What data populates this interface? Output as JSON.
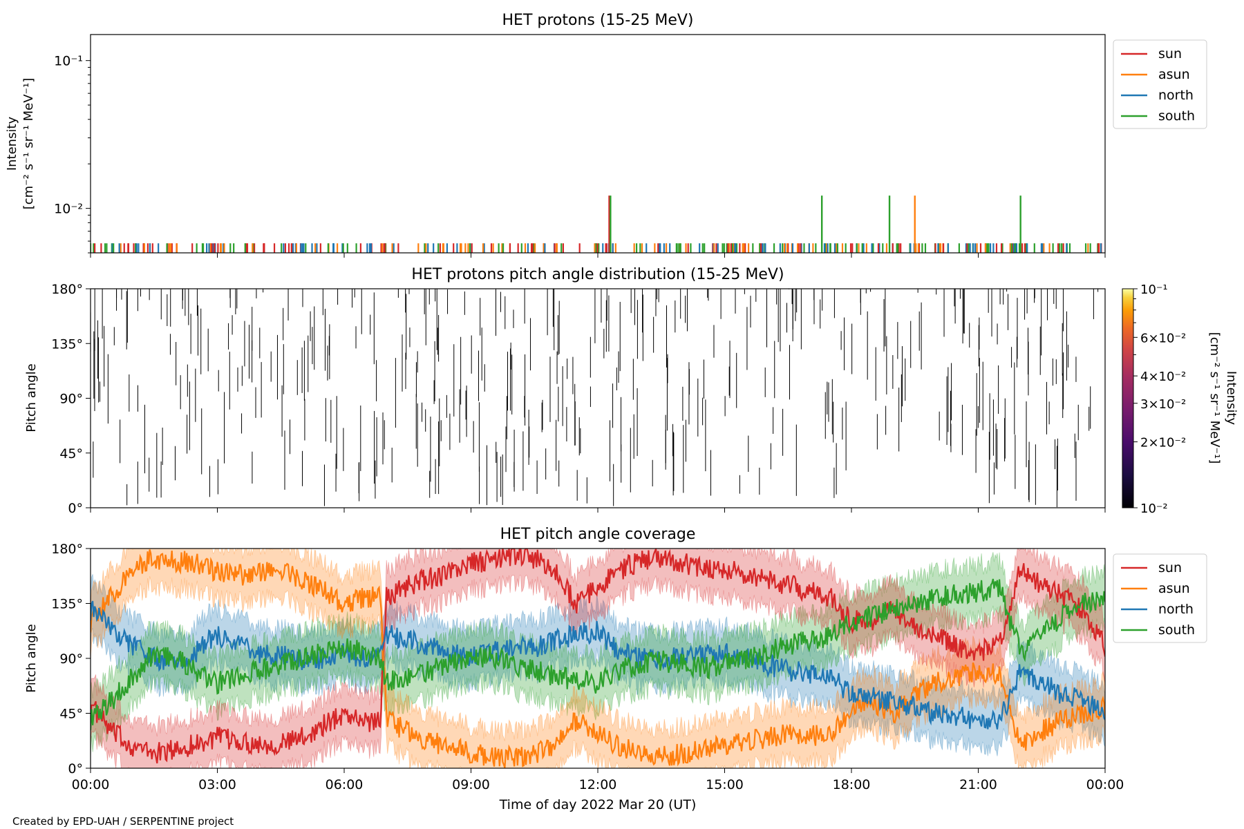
{
  "credit": "Created by EPD-UAH / SERPENTINE project",
  "colors": {
    "sun": "#d62728",
    "asun": "#ff7f0e",
    "north": "#1f77b4",
    "south": "#2ca02c"
  },
  "chart_data": [
    {
      "type": "line",
      "title": "HET protons (15-25 MeV)",
      "ylabel_line1": "Intensity",
      "ylabel_line2": "[cm⁻² s⁻¹ sr⁻¹ MeV⁻¹]",
      "yscale": "log",
      "ylim": [
        0.005,
        0.15
      ],
      "ytick_labels": [
        {
          "value": 0.1,
          "label": "10⁻¹"
        },
        {
          "value": 0.01,
          "label": "10⁻²"
        }
      ],
      "x_unit": "hours from 2022-03-20 00:00 UT",
      "xlim": [
        0,
        24
      ],
      "legend": [
        "sun",
        "asun",
        "north",
        "south"
      ],
      "legend_position": "outside-top-right",
      "series": [
        {
          "name": "sun",
          "x": [
            12.27
          ],
          "y": [
            0.0122
          ]
        },
        {
          "name": "asun",
          "x": [
            19.5
          ],
          "y": [
            0.0122
          ]
        },
        {
          "name": "north",
          "x": [],
          "y": []
        },
        {
          "name": "south",
          "x": [
            12.3,
            17.3,
            18.9,
            22.0
          ],
          "y": [
            0.0122,
            0.0122,
            0.0122,
            0.0122
          ]
        }
      ],
      "baseline_counts": "single-count intensity ~0.006 sporadically across the day"
    },
    {
      "type": "heatmap",
      "title": "HET protons pitch angle distribution (15-25 MeV)",
      "ylabel": "Pitch angle",
      "ylim": [
        0,
        180
      ],
      "ytick_labels": [
        "0°",
        "45°",
        "90°",
        "135°",
        "180°"
      ],
      "xlim": [
        0,
        24
      ],
      "colorbar": {
        "label_line1": "Intensity",
        "label_line2": "[cm⁻² s⁻¹ sr⁻¹ MeV⁻¹]",
        "scale": "log",
        "range": [
          0.01,
          0.1
        ],
        "tick_labels": [
          {
            "value": 0.1,
            "label": "10⁻¹"
          },
          {
            "value": 0.06,
            "label": "6×10⁻²"
          },
          {
            "value": 0.04,
            "label": "4×10⁻²"
          },
          {
            "value": 0.03,
            "label": "3×10⁻²"
          },
          {
            "value": 0.02,
            "label": "2×10⁻²"
          },
          {
            "value": 0.01,
            "label": "10⁻²"
          }
        ],
        "colormap": "inferno"
      },
      "description": "sparse narrow vertical black streaks at the lowest intensity level"
    },
    {
      "type": "line",
      "title": "HET pitch angle coverage",
      "ylabel": "Pitch angle",
      "xlabel": "Time of day 2022 Mar 20 (UT)",
      "ylim": [
        0,
        180
      ],
      "ytick_labels": [
        "0°",
        "45°",
        "90°",
        "135°",
        "180°"
      ],
      "xlim": [
        0,
        24
      ],
      "xtick_labels": [
        "00:00",
        "03:00",
        "06:00",
        "09:00",
        "12:00",
        "15:00",
        "18:00",
        "21:00",
        "00:00"
      ],
      "legend": [
        "sun",
        "asun",
        "north",
        "south"
      ],
      "legend_position": "outside-top-right",
      "shaded_band_halfwidth_deg": 22,
      "series": [
        {
          "name": "sun",
          "x": [
            0,
            0.5,
            1,
            1.5,
            2,
            2.5,
            3,
            3.5,
            4,
            4.5,
            5,
            5.5,
            6,
            6.5,
            6.85,
            7,
            7.5,
            8,
            8.5,
            9,
            9.5,
            10,
            10.5,
            11,
            11.5,
            12,
            12.5,
            13,
            13.5,
            14,
            14.5,
            15,
            15.5,
            16,
            16.5,
            17,
            17.5,
            18,
            18.5,
            19,
            19.5,
            20,
            20.5,
            21,
            21.5,
            22,
            22.5,
            23,
            23.5,
            24
          ],
          "y": [
            52,
            30,
            18,
            12,
            15,
            20,
            25,
            22,
            20,
            20,
            25,
            35,
            45,
            38,
            40,
            140,
            150,
            155,
            160,
            168,
            170,
            175,
            172,
            160,
            135,
            148,
            162,
            170,
            172,
            168,
            165,
            163,
            158,
            155,
            150,
            145,
            140,
            120,
            122,
            130,
            115,
            110,
            100,
            95,
            102,
            165,
            150,
            140,
            130,
            100
          ]
        },
        {
          "name": "asun",
          "x": [
            0,
            0.5,
            1,
            1.5,
            2,
            2.5,
            3,
            3.5,
            4,
            4.5,
            5,
            5.5,
            6,
            6.5,
            6.85,
            7,
            7.5,
            8,
            8.5,
            9,
            9.5,
            10,
            10.5,
            11,
            11.5,
            12,
            12.5,
            13,
            13.5,
            14,
            14.5,
            15,
            15.5,
            16,
            16.5,
            17,
            17.5,
            18,
            18.5,
            19,
            19.5,
            20,
            20.5,
            21,
            21.5,
            22,
            22.5,
            23,
            23.5,
            24
          ],
          "y": [
            120,
            140,
            165,
            172,
            170,
            168,
            160,
            158,
            160,
            162,
            155,
            145,
            135,
            140,
            140,
            40,
            30,
            22,
            18,
            12,
            10,
            8,
            12,
            18,
            40,
            28,
            18,
            12,
            10,
            12,
            15,
            18,
            22,
            25,
            28,
            28,
            25,
            50,
            55,
            45,
            60,
            70,
            75,
            80,
            78,
            20,
            30,
            40,
            45,
            50
          ]
        },
        {
          "name": "north",
          "x": [
            0,
            0.5,
            1,
            1.5,
            2,
            2.5,
            3,
            3.5,
            4,
            4.5,
            5,
            5.5,
            6,
            6.5,
            6.85,
            7,
            7.5,
            8,
            8.5,
            9,
            9.5,
            10,
            10.5,
            11,
            11.5,
            12,
            12.5,
            13,
            13.5,
            14,
            14.5,
            15,
            15.5,
            16,
            16.5,
            17,
            17.5,
            18,
            18.5,
            19,
            19.5,
            20,
            20.5,
            21,
            21.5,
            22,
            22.5,
            23,
            23.5,
            24
          ],
          "y": [
            130,
            115,
            100,
            90,
            85,
            95,
            110,
            100,
            95,
            92,
            88,
            90,
            95,
            90,
            92,
            110,
            105,
            100,
            95,
            90,
            95,
            100,
            98,
            105,
            110,
            112,
            95,
            90,
            88,
            92,
            95,
            95,
            90,
            85,
            80,
            78,
            75,
            60,
            58,
            55,
            50,
            45,
            42,
            40,
            38,
            80,
            70,
            60,
            55,
            45
          ]
        },
        {
          "name": "south",
          "x": [
            0,
            0.5,
            1,
            1.5,
            2,
            2.5,
            3,
            3.5,
            4,
            4.5,
            5,
            5.5,
            6,
            6.5,
            6.85,
            7,
            7.5,
            8,
            8.5,
            9,
            9.5,
            10,
            10.5,
            11,
            11.5,
            12,
            12.5,
            13,
            13.5,
            14,
            14.5,
            15,
            15.5,
            16,
            16.5,
            17,
            17.5,
            18,
            18.5,
            19,
            19.5,
            20,
            20.5,
            21,
            21.5,
            22,
            22.5,
            23,
            23.5,
            24
          ],
          "y": [
            40,
            55,
            75,
            95,
            90,
            80,
            70,
            75,
            80,
            85,
            90,
            95,
            98,
            95,
            90,
            70,
            75,
            80,
            85,
            90,
            92,
            85,
            80,
            75,
            72,
            70,
            80,
            85,
            88,
            85,
            82,
            85,
            88,
            95,
            100,
            105,
            108,
            120,
            125,
            130,
            135,
            140,
            142,
            145,
            148,
            95,
            110,
            125,
            135,
            140
          ]
        }
      ]
    }
  ]
}
